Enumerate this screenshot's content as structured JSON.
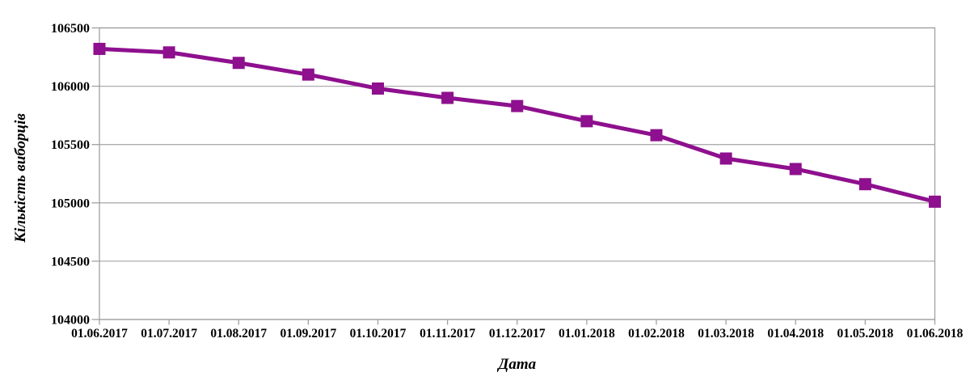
{
  "chart_data": {
    "type": "line",
    "title": "",
    "xlabel": "Дата",
    "ylabel": "Кількість виборців",
    "categories": [
      "01.06.2017",
      "01.07.2017",
      "01.08.2017",
      "01.09.2017",
      "01.10.2017",
      "01.11.2017",
      "01.12.2017",
      "01.01.2018",
      "01.02.2018",
      "01.03.2018",
      "01.04.2018",
      "01.05.2018",
      "01.06.2018"
    ],
    "series": [
      {
        "name": "Кількість виборців",
        "values": [
          106320,
          106290,
          106200,
          106100,
          105980,
          105900,
          105830,
          105700,
          105580,
          105380,
          105290,
          105160,
          105010
        ]
      }
    ],
    "ylim": [
      104000,
      106500
    ],
    "yticks": [
      106500,
      106000,
      105500,
      105000,
      104500,
      104000
    ],
    "grid": true,
    "legend_position": "none",
    "marker": "square",
    "colors": {
      "line": "#8E108E",
      "marker": "#8E108E",
      "grid": "#ADADAD",
      "axis": "#A0A0A0",
      "text": "#000000",
      "background": "#FFFFFF"
    }
  }
}
